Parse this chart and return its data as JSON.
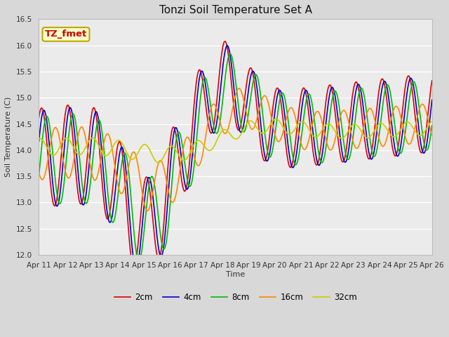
{
  "title": "Tonzi Soil Temperature Set A",
  "xlabel": "Time",
  "ylabel": "Soil Temperature (C)",
  "annotation": "TZ_fmet",
  "ylim": [
    12.0,
    16.5
  ],
  "x_tick_labels": [
    "Apr 11",
    "Apr 12",
    "Apr 13",
    "Apr 14",
    "Apr 15",
    "Apr 16",
    "Apr 17",
    "Apr 18",
    "Apr 19",
    "Apr 20",
    "Apr 21",
    "Apr 22",
    "Apr 23",
    "Apr 24",
    "Apr 25",
    "Apr 26"
  ],
  "legend_labels": [
    "2cm",
    "4cm",
    "8cm",
    "16cm",
    "32cm"
  ],
  "line_colors": [
    "#dd0000",
    "#0000cc",
    "#00bb00",
    "#ff8800",
    "#cccc00"
  ],
  "bg_color": "#d8d8d8",
  "plot_bg_color": "#ebebeb",
  "linewidth": 1.2,
  "grid_color": "#ffffff",
  "annotation_color": "#cc0000",
  "annotation_bg": "#ffffcc",
  "annotation_border": "#bbaa00",
  "title_fontsize": 11,
  "axis_label_fontsize": 8,
  "tick_fontsize": 7.5,
  "legend_fontsize": 8.5
}
